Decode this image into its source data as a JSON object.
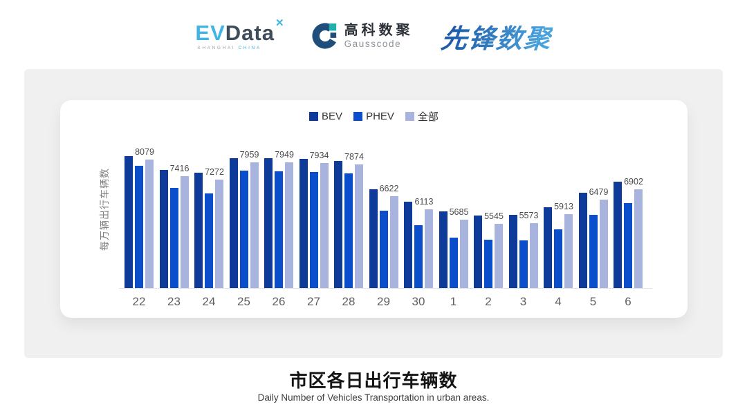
{
  "header": {
    "evdata": {
      "ev": "EV",
      "data": "Data",
      "mark": "✕",
      "sub_left": "SHANGHAI",
      "sub_right": "CHINA"
    },
    "gausscode": {
      "name_cn": "高科数聚",
      "name_en": "Gausscode",
      "icon_ring_color": "#1f4e7c",
      "icon_square_color": "#1fb0ad"
    },
    "pioneer": {
      "name": "先锋数聚"
    }
  },
  "chart_data": {
    "type": "bar",
    "title": "市区各日出行车辆数",
    "subtitle": "Daily Number of Vehicles Transportation in urban areas.",
    "ylabel": "每万辆出行车辆数",
    "categories": [
      "22",
      "23",
      "24",
      "25",
      "26",
      "27",
      "28",
      "29",
      "30",
      "1",
      "2",
      "3",
      "4",
      "5",
      "6"
    ],
    "series": [
      {
        "name": "BEV",
        "color": "#0e3a9a",
        "values": [
          8190,
          7650,
          7540,
          8130,
          8115,
          8100,
          8020,
          6890,
          6410,
          6030,
          5870,
          5900,
          6200,
          6760,
          7200
        ]
      },
      {
        "name": "PHEV",
        "color": "#0b4ecb",
        "values": [
          7810,
          6940,
          6740,
          7620,
          7600,
          7580,
          7520,
          6050,
          5480,
          5000,
          4900,
          4880,
          5310,
          5890,
          6350
        ]
      },
      {
        "name": "全部",
        "color": "#a8b3de",
        "values": [
          8079,
          7416,
          7272,
          7959,
          7949,
          7934,
          7874,
          6622,
          6113,
          5685,
          5545,
          5573,
          5913,
          6479,
          6902
        ]
      }
    ],
    "value_labels_series": "全部",
    "value_labels": [
      8079,
      7416,
      7272,
      7959,
      7949,
      7934,
      7874,
      6622,
      6113,
      5685,
      5545,
      5573,
      5913,
      6479,
      6902
    ],
    "ylim": [
      3000,
      8500
    ],
    "legend_position": "top-center",
    "grid": false,
    "axis_line_color": "#e4e4e4"
  }
}
